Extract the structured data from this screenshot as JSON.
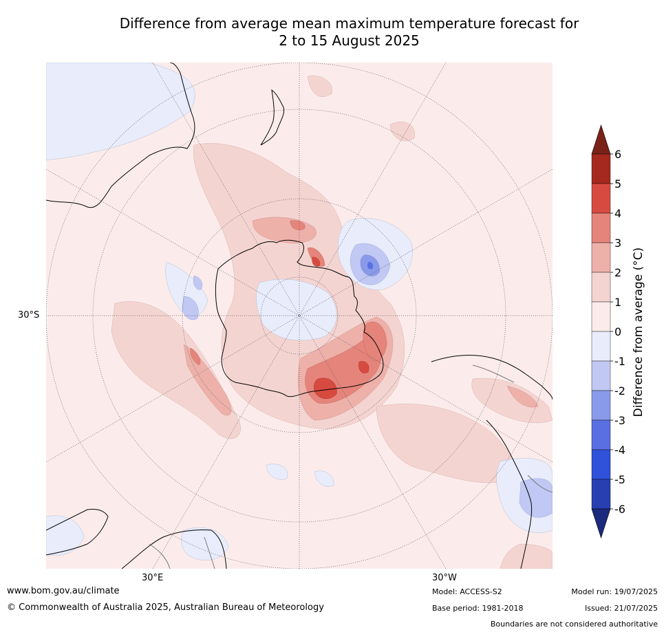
{
  "title": {
    "line1": "Difference from average mean maximum temperature forecast for",
    "line2": "2 to 15 August 2025"
  },
  "map": {
    "projection": "south-polar stereographic",
    "graticule_labels": {
      "lat": "30°S",
      "lon_east": "30°E",
      "lon_west": "30°W"
    }
  },
  "colorbar": {
    "label": "Difference from average (°C)",
    "ticks": [
      "6",
      "5",
      "4",
      "3",
      "2",
      "1",
      "0",
      "-1",
      "-2",
      "-3",
      "-4",
      "-5",
      "-6"
    ],
    "colors": {
      "above_6": "#7b2218",
      "5_6": "#a5291f",
      "4_5": "#d74a40",
      "3_4": "#e5847b",
      "2_3": "#edb1aa",
      "1_2": "#f4d4d1",
      "0_1": "#fbeceb",
      "m1_0": "#e8ecfb",
      "m2_m1": "#c0c8f3",
      "m3_m2": "#8a9aea",
      "m4_m3": "#5a6fe2",
      "m5_m4": "#3051d9",
      "m6_m5": "#273fb0",
      "below_m6": "#1b2a7c"
    }
  },
  "footer": {
    "website": "www.bom.gov.au/climate",
    "copyright": "© Commonwealth of Australia 2025, Australian Bureau of Meteorology",
    "model": "Model: ACCESS-S2",
    "base_period": "Base period: 1981-2018",
    "model_run": "Model run: 19/07/2025",
    "issued": "Issued: 21/07/2025",
    "disclaimer": "Boundaries are not considered authoritative"
  }
}
